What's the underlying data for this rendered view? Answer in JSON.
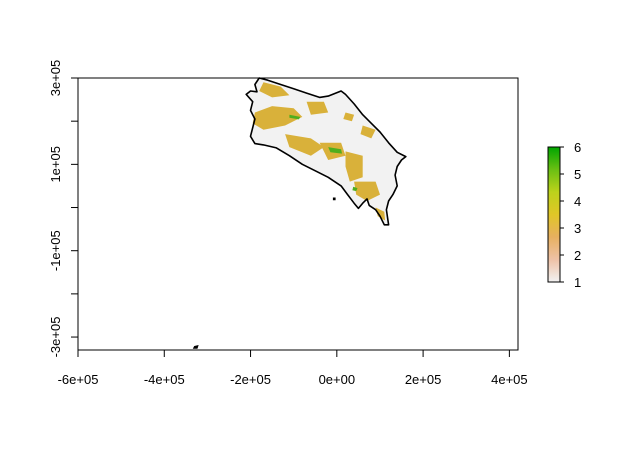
{
  "chart_data": {
    "type": "heatmap",
    "title": "",
    "xlabel": "",
    "ylabel": "",
    "xlim": [
      -600000,
      420000
    ],
    "ylim": [
      -330000,
      300000
    ],
    "x_ticks": [
      {
        "value": -600000,
        "label": "-6e+05"
      },
      {
        "value": -400000,
        "label": "-4e+05"
      },
      {
        "value": -200000,
        "label": "-2e+05"
      },
      {
        "value": 0,
        "label": "0e+00"
      },
      {
        "value": 200000,
        "label": "2e+05"
      },
      {
        "value": 400000,
        "label": "4e+05"
      }
    ],
    "y_ticks": [
      {
        "value": 300000,
        "label": "3e+05",
        "labeled": true
      },
      {
        "value": 200000,
        "label": "",
        "labeled": false
      },
      {
        "value": 100000,
        "label": "1e+05",
        "labeled": true
      },
      {
        "value": 0,
        "label": "",
        "labeled": false
      },
      {
        "value": -100000,
        "label": "-1e+05",
        "labeled": true
      },
      {
        "value": -200000,
        "label": "",
        "labeled": false
      },
      {
        "value": -300000,
        "label": "-3e+05",
        "labeled": true
      }
    ],
    "legend": {
      "position": "right",
      "min": 1,
      "max": 6,
      "ticks": [
        "1",
        "2",
        "3",
        "4",
        "5",
        "6"
      ],
      "colors": [
        "#f2f2f2",
        "#eec1a6",
        "#e7b060",
        "#e0c627",
        "#bcd21b",
        "#6abf13",
        "#00a600"
      ]
    },
    "region": {
      "outline_color": "#000000",
      "base_color": "#f2f2f2",
      "class3_color": "#d9b13a",
      "class5_color": "#4fae1e",
      "outline": [
        [
          -180000,
          300000
        ],
        [
          -160000,
          295000
        ],
        [
          -130000,
          285000
        ],
        [
          -100000,
          275000
        ],
        [
          -70000,
          265000
        ],
        [
          -40000,
          255000
        ],
        [
          -20000,
          258000
        ],
        [
          10000,
          270000
        ],
        [
          20000,
          262000
        ],
        [
          40000,
          240000
        ],
        [
          60000,
          215000
        ],
        [
          80000,
          195000
        ],
        [
          100000,
          175000
        ],
        [
          120000,
          150000
        ],
        [
          140000,
          128000
        ],
        [
          160000,
          118000
        ],
        [
          150000,
          110000
        ],
        [
          140000,
          95000
        ],
        [
          135000,
          75000
        ],
        [
          140000,
          50000
        ],
        [
          130000,
          30000
        ],
        [
          120000,
          15000
        ],
        [
          115000,
          -5000
        ],
        [
          120000,
          -40000
        ],
        [
          110000,
          -40000
        ],
        [
          100000,
          -20000
        ],
        [
          90000,
          -5000
        ],
        [
          75000,
          5000
        ],
        [
          70000,
          20000
        ],
        [
          60000,
          10000
        ],
        [
          50000,
          -2000
        ],
        [
          40000,
          10000
        ],
        [
          25000,
          30000
        ],
        [
          10000,
          50000
        ],
        [
          -20000,
          70000
        ],
        [
          -50000,
          85000
        ],
        [
          -80000,
          100000
        ],
        [
          -110000,
          120000
        ],
        [
          -140000,
          138000
        ],
        [
          -170000,
          145000
        ],
        [
          -190000,
          148000
        ],
        [
          -200000,
          165000
        ],
        [
          -195000,
          185000
        ],
        [
          -190000,
          205000
        ],
        [
          -200000,
          225000
        ],
        [
          -195000,
          245000
        ],
        [
          -210000,
          262000
        ],
        [
          -200000,
          270000
        ],
        [
          -185000,
          268000
        ],
        [
          -190000,
          285000
        ]
      ],
      "class3_patches": [
        [
          [
            -190000,
            220000
          ],
          [
            -150000,
            235000
          ],
          [
            -100000,
            230000
          ],
          [
            -80000,
            210000
          ],
          [
            -120000,
            190000
          ],
          [
            -170000,
            180000
          ],
          [
            -195000,
            195000
          ]
        ],
        [
          [
            -170000,
            290000
          ],
          [
            -130000,
            280000
          ],
          [
            -110000,
            260000
          ],
          [
            -150000,
            255000
          ],
          [
            -180000,
            270000
          ]
        ],
        [
          [
            -70000,
            245000
          ],
          [
            -30000,
            245000
          ],
          [
            -20000,
            220000
          ],
          [
            -60000,
            215000
          ]
        ],
        [
          [
            -120000,
            170000
          ],
          [
            -60000,
            160000
          ],
          [
            -30000,
            140000
          ],
          [
            -60000,
            120000
          ],
          [
            -110000,
            140000
          ]
        ],
        [
          [
            -40000,
            150000
          ],
          [
            10000,
            150000
          ],
          [
            20000,
            120000
          ],
          [
            -20000,
            110000
          ]
        ],
        [
          [
            20000,
            130000
          ],
          [
            60000,
            120000
          ],
          [
            60000,
            70000
          ],
          [
            30000,
            60000
          ],
          [
            20000,
            95000
          ]
        ],
        [
          [
            40000,
            60000
          ],
          [
            90000,
            60000
          ],
          [
            100000,
            30000
          ],
          [
            70000,
            15000
          ],
          [
            45000,
            30000
          ]
        ],
        [
          [
            60000,
            190000
          ],
          [
            90000,
            180000
          ],
          [
            80000,
            160000
          ],
          [
            55000,
            170000
          ]
        ],
        [
          [
            20000,
            220000
          ],
          [
            40000,
            215000
          ],
          [
            35000,
            200000
          ],
          [
            15000,
            205000
          ]
        ],
        [
          [
            90000,
            0
          ],
          [
            110000,
            -10000
          ],
          [
            112000,
            -30000
          ],
          [
            95000,
            -20000
          ]
        ]
      ],
      "class5_patches": [
        [
          [
            -20000,
            140000
          ],
          [
            10000,
            135000
          ],
          [
            12000,
            125000
          ],
          [
            -15000,
            128000
          ]
        ],
        [
          [
            -110000,
            215000
          ],
          [
            -85000,
            210000
          ],
          [
            -88000,
            204000
          ],
          [
            -110000,
            208000
          ]
        ],
        [
          [
            38000,
            48000
          ],
          [
            48000,
            45000
          ],
          [
            45000,
            38000
          ],
          [
            36000,
            40000
          ]
        ]
      ],
      "islands": [
        [
          [
            -330000,
            -322000
          ],
          [
            -322000,
            -320000
          ],
          [
            -324000,
            -326000
          ],
          [
            -332000,
            -326000
          ]
        ],
        [
          [
            -8000,
            22000
          ],
          [
            -4000,
            22000
          ],
          [
            -4000,
            18000
          ],
          [
            -8000,
            18000
          ]
        ]
      ]
    }
  }
}
